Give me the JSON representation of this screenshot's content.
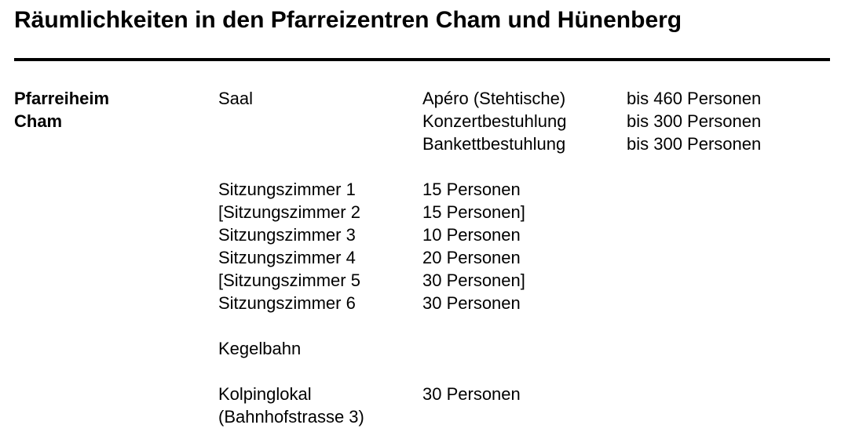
{
  "title": "Räumlichkeiten in den Pfarreizentren Cham und Hünenberg",
  "location": [
    "Pfarreiheim",
    "Cham"
  ],
  "saal": {
    "name": "Saal",
    "setups": [
      {
        "label": "Apéro (Stehtische)",
        "capacity": "bis 460 Personen"
      },
      {
        "label": "Konzertbestuhlung",
        "capacity": "bis 300 Personen"
      },
      {
        "label": "Bankettbestuhlung",
        "capacity": "bis 300 Personen"
      }
    ]
  },
  "rooms": [
    {
      "name": "Sitzungszimmer 1",
      "capacity": "15 Personen"
    },
    {
      "name": "[Sitzungszimmer 2",
      "capacity": "15 Personen]"
    },
    {
      "name": "Sitzungszimmer 3",
      "capacity": "10 Personen"
    },
    {
      "name": "Sitzungszimmer 4",
      "capacity": "20 Personen"
    },
    {
      "name": "[Sitzungszimmer 5",
      "capacity": "30 Personen]"
    },
    {
      "name": "Sitzungszimmer 6",
      "capacity": "30 Personen"
    }
  ],
  "kegelbahn": "Kegelbahn",
  "kolping": {
    "name": "Kolpinglokal",
    "address": "(Bahnhofstrasse 3)",
    "capacity": "30 Personen"
  }
}
